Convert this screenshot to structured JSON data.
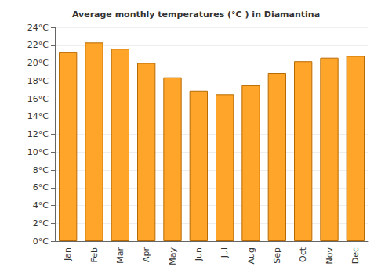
{
  "chart_data": {
    "type": "bar",
    "title": "Average monthly temperatures (°C ) in Diamantina",
    "categories": [
      "Jan",
      "Feb",
      "Mar",
      "Apr",
      "May",
      "Jun",
      "Jul",
      "Aug",
      "Sep",
      "Oct",
      "Nov",
      "Dec"
    ],
    "values": [
      21.2,
      22.3,
      21.6,
      20.0,
      18.4,
      16.9,
      16.5,
      17.5,
      18.9,
      20.2,
      20.6,
      20.8
    ],
    "color": "#ffa52a",
    "ylim": [
      0,
      24
    ],
    "yticks": [
      {
        "value": 0,
        "label": "0°C"
      },
      {
        "value": 2,
        "label": "2°C"
      },
      {
        "value": 4,
        "label": "4°C"
      },
      {
        "value": 6,
        "label": "6°C"
      },
      {
        "value": 8,
        "label": "8°C"
      },
      {
        "value": 10,
        "label": "10°C"
      },
      {
        "value": 12,
        "label": "12°C"
      },
      {
        "value": 14,
        "label": "14°C"
      },
      {
        "value": 16,
        "label": "16°C"
      },
      {
        "value": 18,
        "label": "18°C"
      },
      {
        "value": 20,
        "label": "20°C"
      },
      {
        "value": 22,
        "label": "22°C"
      },
      {
        "value": 24,
        "label": "24°C"
      }
    ],
    "grid": true
  }
}
